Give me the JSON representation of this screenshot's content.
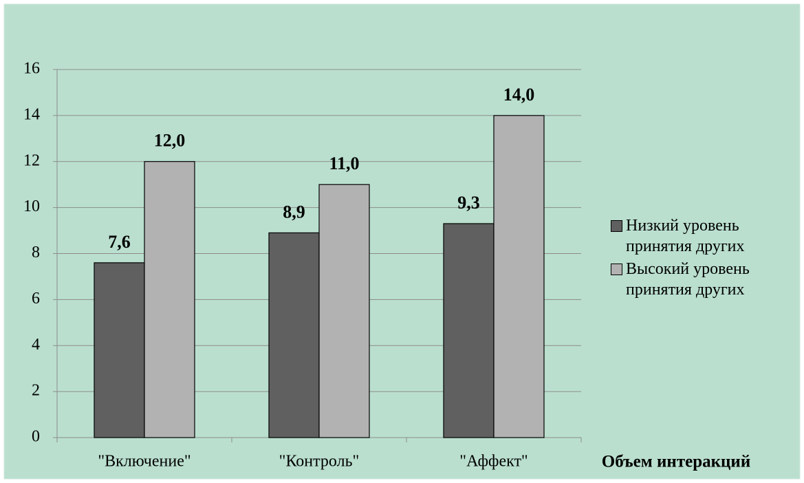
{
  "chart_data": {
    "type": "bar",
    "x_label": "Объем интеракций",
    "categories": [
      "\"Включение\"",
      "\"Контроль\"",
      "\"Аффект\""
    ],
    "series": [
      {
        "name": "Низкий уровень принятия других",
        "color": "#606060",
        "values": [
          7.6,
          8.9,
          9.3
        ],
        "value_labels": [
          "7,6",
          "8,9",
          "9,3"
        ]
      },
      {
        "name": "Высокий уровень принятия других",
        "color": "#b2b2b2",
        "values": [
          12.0,
          11.0,
          14.0
        ],
        "value_labels": [
          "12,0",
          "11,0",
          "14,0"
        ]
      }
    ],
    "ylim": [
      0,
      16
    ],
    "yticks": [
      0,
      2,
      4,
      6,
      8,
      10,
      12,
      14,
      16
    ],
    "grid": true,
    "legend": "right"
  }
}
